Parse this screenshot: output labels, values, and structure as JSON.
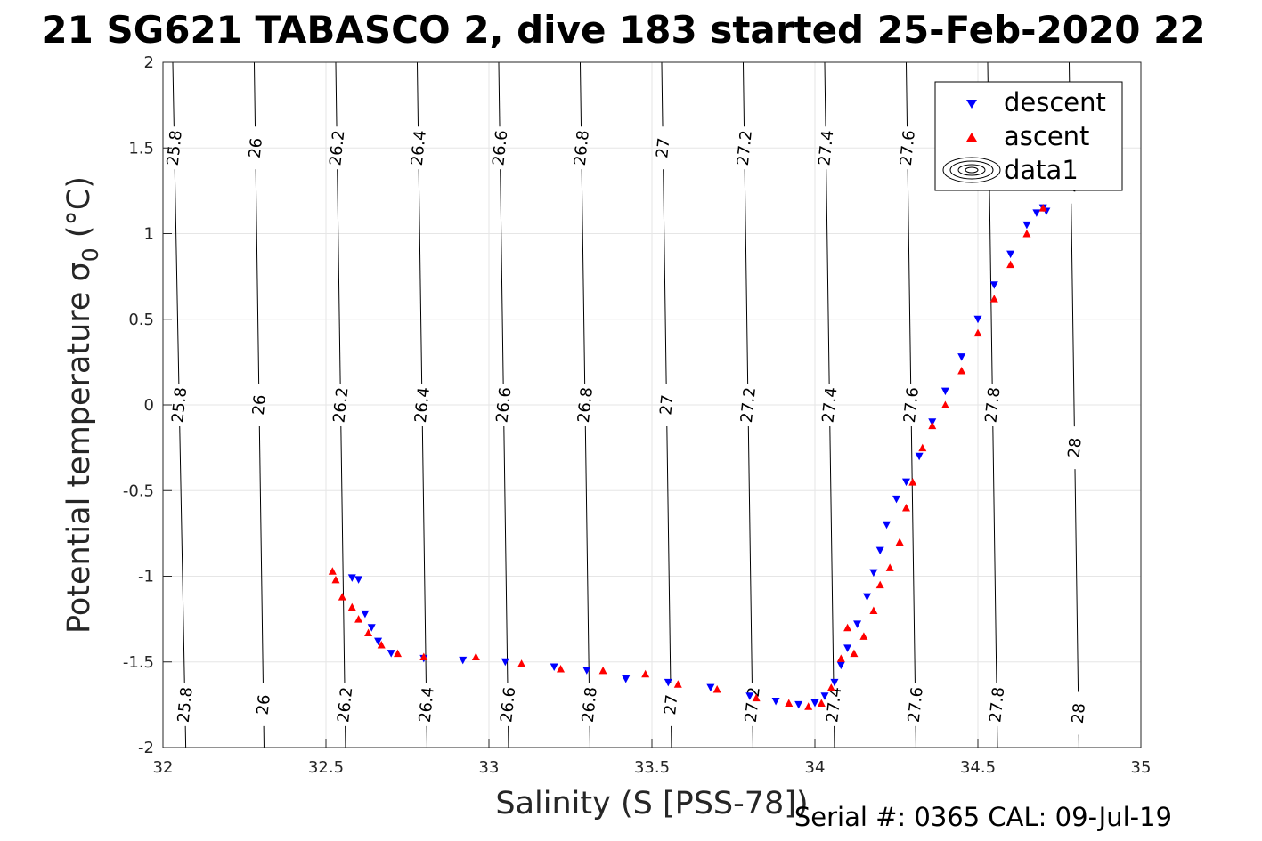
{
  "chart_data": {
    "type": "scatter",
    "title": "21 SG621 TABASCO 2, dive 183 started 25-Feb-2020 22",
    "xlabel": "Salinity (S [PSS-78])",
    "ylabel": "Potential temperature σ",
    "ylabel_subscript": "0",
    "ylabel_suffix": " (°C)",
    "xlim": [
      32,
      35
    ],
    "ylim": [
      -2,
      2
    ],
    "xticks": [
      32,
      32.5,
      33,
      33.5,
      34,
      34.5,
      35
    ],
    "xtick_labels": [
      "32",
      "32.5",
      "33",
      "33.5",
      "34",
      "34.5",
      "35"
    ],
    "yticks": [
      2,
      1.5,
      1,
      0.5,
      0,
      -0.5,
      -1,
      -1.5,
      -2
    ],
    "ytick_labels": [
      "2",
      "1.5",
      "1",
      "0.5",
      "0",
      "-0.5",
      "-1",
      "-1.5",
      "-2"
    ],
    "grid": true,
    "legend_position": "top-right",
    "footer": "Serial #: 0365  CAL: 09-Jul-19",
    "contours": [
      {
        "label": "25.8",
        "s_at_top": 32.03,
        "s_at_bottom": 32.07,
        "label_temps": [
          1.5,
          0,
          -1.75
        ]
      },
      {
        "label": "26",
        "s_at_top": 32.28,
        "s_at_bottom": 32.31,
        "label_temps": [
          1.5,
          0,
          -1.75
        ]
      },
      {
        "label": "26.2",
        "s_at_top": 32.53,
        "s_at_bottom": 32.56,
        "label_temps": [
          1.5,
          0,
          -1.75
        ]
      },
      {
        "label": "26.4",
        "s_at_top": 32.78,
        "s_at_bottom": 32.81,
        "label_temps": [
          1.5,
          0,
          -1.75
        ]
      },
      {
        "label": "26.6",
        "s_at_top": 33.03,
        "s_at_bottom": 33.06,
        "label_temps": [
          1.5,
          0,
          -1.75
        ]
      },
      {
        "label": "26.8",
        "s_at_top": 33.28,
        "s_at_bottom": 33.31,
        "label_temps": [
          1.5,
          0,
          -1.75
        ]
      },
      {
        "label": "27",
        "s_at_top": 33.53,
        "s_at_bottom": 33.56,
        "label_temps": [
          1.5,
          0,
          -1.75
        ]
      },
      {
        "label": "27.2",
        "s_at_top": 33.78,
        "s_at_bottom": 33.81,
        "label_temps": [
          1.5,
          0,
          -1.75
        ]
      },
      {
        "label": "27.4",
        "s_at_top": 34.03,
        "s_at_bottom": 34.06,
        "label_temps": [
          1.5,
          0,
          -1.75
        ]
      },
      {
        "label": "27.6",
        "s_at_top": 34.28,
        "s_at_bottom": 34.31,
        "label_temps": [
          1.5,
          0,
          -1.75
        ]
      },
      {
        "label": "27.8",
        "s_at_top": 34.53,
        "s_at_bottom": 34.56,
        "label_temps": [
          1.5,
          0,
          -1.75
        ]
      },
      {
        "label": "28",
        "s_at_top": 34.78,
        "s_at_bottom": 34.81,
        "label_temps": [
          1.3,
          -0.25,
          -1.8
        ]
      }
    ],
    "series": [
      {
        "name": "descent",
        "color": "#0000ff",
        "marker": "triangle-down",
        "points": [
          [
            32.58,
            -1.01
          ],
          [
            32.6,
            -1.02
          ],
          [
            32.62,
            -1.22
          ],
          [
            32.64,
            -1.3
          ],
          [
            32.66,
            -1.38
          ],
          [
            32.7,
            -1.45
          ],
          [
            32.8,
            -1.48
          ],
          [
            32.92,
            -1.49
          ],
          [
            33.05,
            -1.5
          ],
          [
            33.2,
            -1.53
          ],
          [
            33.3,
            -1.55
          ],
          [
            33.42,
            -1.6
          ],
          [
            33.55,
            -1.62
          ],
          [
            33.68,
            -1.65
          ],
          [
            33.8,
            -1.7
          ],
          [
            33.88,
            -1.73
          ],
          [
            33.95,
            -1.75
          ],
          [
            34.0,
            -1.74
          ],
          [
            34.03,
            -1.7
          ],
          [
            34.06,
            -1.62
          ],
          [
            34.08,
            -1.52
          ],
          [
            34.1,
            -1.42
          ],
          [
            34.13,
            -1.28
          ],
          [
            34.16,
            -1.12
          ],
          [
            34.18,
            -0.98
          ],
          [
            34.2,
            -0.85
          ],
          [
            34.22,
            -0.7
          ],
          [
            34.25,
            -0.55
          ],
          [
            34.28,
            -0.45
          ],
          [
            34.32,
            -0.3
          ],
          [
            34.36,
            -0.1
          ],
          [
            34.4,
            0.08
          ],
          [
            34.45,
            0.28
          ],
          [
            34.5,
            0.5
          ],
          [
            34.55,
            0.7
          ],
          [
            34.6,
            0.88
          ],
          [
            34.65,
            1.05
          ],
          [
            34.68,
            1.12
          ],
          [
            34.7,
            1.15
          ],
          [
            34.71,
            1.13
          ]
        ]
      },
      {
        "name": "ascent",
        "color": "#ff0000",
        "marker": "triangle-up",
        "points": [
          [
            32.52,
            -0.97
          ],
          [
            32.53,
            -1.02
          ],
          [
            32.55,
            -1.12
          ],
          [
            32.58,
            -1.18
          ],
          [
            32.6,
            -1.25
          ],
          [
            32.63,
            -1.33
          ],
          [
            32.67,
            -1.4
          ],
          [
            32.72,
            -1.45
          ],
          [
            32.8,
            -1.47
          ],
          [
            32.96,
            -1.47
          ],
          [
            33.1,
            -1.51
          ],
          [
            33.22,
            -1.54
          ],
          [
            33.35,
            -1.55
          ],
          [
            33.48,
            -1.57
          ],
          [
            33.58,
            -1.63
          ],
          [
            33.7,
            -1.66
          ],
          [
            33.82,
            -1.71
          ],
          [
            33.92,
            -1.74
          ],
          [
            33.98,
            -1.76
          ],
          [
            34.02,
            -1.74
          ],
          [
            34.05,
            -1.65
          ],
          [
            34.08,
            -1.48
          ],
          [
            34.1,
            -1.3
          ],
          [
            34.12,
            -1.45
          ],
          [
            34.15,
            -1.35
          ],
          [
            34.18,
            -1.2
          ],
          [
            34.2,
            -1.05
          ],
          [
            34.23,
            -0.95
          ],
          [
            34.26,
            -0.8
          ],
          [
            34.28,
            -0.6
          ],
          [
            34.3,
            -0.45
          ],
          [
            34.33,
            -0.25
          ],
          [
            34.36,
            -0.12
          ],
          [
            34.4,
            0.0
          ],
          [
            34.45,
            0.2
          ],
          [
            34.5,
            0.42
          ],
          [
            34.55,
            0.62
          ],
          [
            34.6,
            0.82
          ],
          [
            34.65,
            1.0
          ],
          [
            34.7,
            1.15
          ]
        ]
      },
      {
        "name": "data1",
        "color": "#000000",
        "marker": "contour",
        "points": []
      }
    ]
  }
}
